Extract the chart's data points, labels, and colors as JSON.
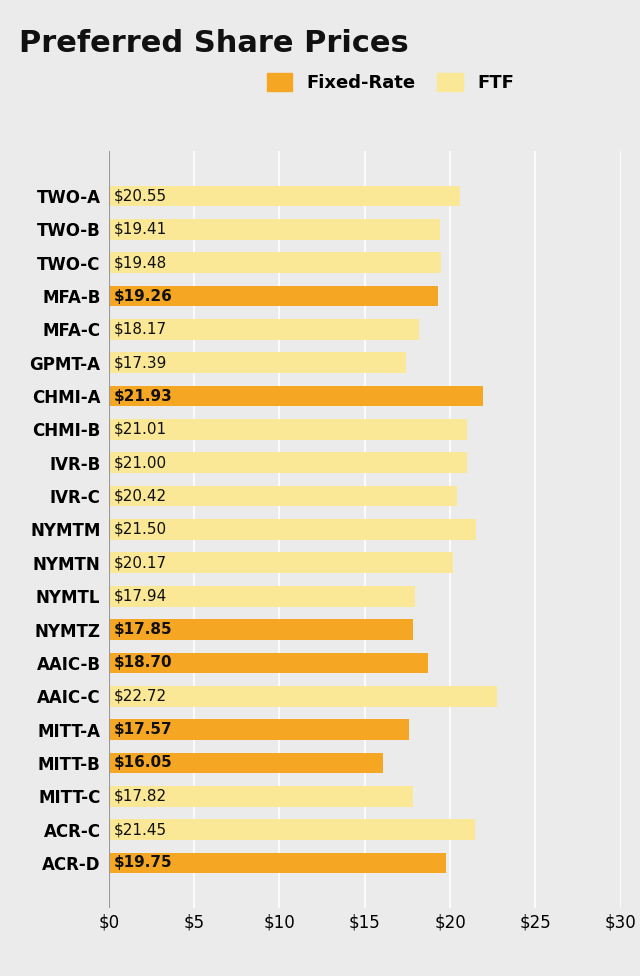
{
  "title": "Preferred Share Prices",
  "categories": [
    "TWO-A",
    "TWO-B",
    "TWO-C",
    "MFA-B",
    "MFA-C",
    "GPMT-A",
    "CHMI-A",
    "CHMI-B",
    "IVR-B",
    "IVR-C",
    "NYMTM",
    "NYMTN",
    "NYMTL",
    "NYMTZ",
    "AAIC-B",
    "AAIC-C",
    "MITT-A",
    "MITT-B",
    "MITT-C",
    "ACR-C",
    "ACR-D"
  ],
  "values": [
    20.55,
    19.41,
    19.48,
    19.26,
    18.17,
    17.39,
    21.93,
    21.01,
    21.0,
    20.42,
    21.5,
    20.17,
    17.94,
    17.85,
    18.7,
    22.72,
    17.57,
    16.05,
    17.82,
    21.45,
    19.75
  ],
  "is_fixed_rate": [
    false,
    false,
    false,
    true,
    false,
    false,
    true,
    false,
    false,
    false,
    false,
    false,
    false,
    true,
    true,
    false,
    true,
    true,
    false,
    false,
    true
  ],
  "bar_color_fixed": "#F5A623",
  "bar_color_ftf": "#FAE896",
  "background_color": "#EBEBEB",
  "xlim": [
    0,
    30
  ],
  "xtick_values": [
    0,
    5,
    10,
    15,
    20,
    25,
    30
  ],
  "xtick_labels": [
    "$0",
    "$5",
    "$10",
    "$15",
    "$20",
    "$25",
    "$30"
  ],
  "legend_fixed_label": "Fixed-Rate",
  "legend_ftf_label": "FTF",
  "title_fontsize": 22,
  "label_fontsize": 11,
  "tick_fontsize": 12,
  "category_fontsize": 12,
  "bar_height": 0.62
}
